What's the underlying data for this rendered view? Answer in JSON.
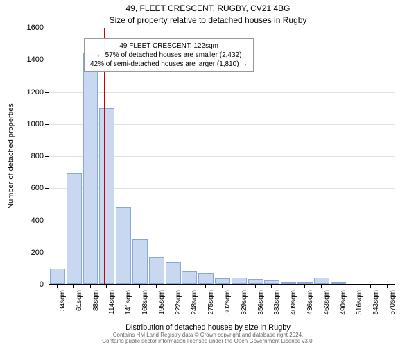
{
  "chart": {
    "type": "histogram",
    "title_main": "49, FLEET CRESCENT, RUGBY, CV21 4BG",
    "title_sub": "Size of property relative to detached houses in Rugby",
    "ylabel": "Number of detached properties",
    "xlabel": "Distribution of detached houses by size in Rugby",
    "ylim": [
      0,
      1600
    ],
    "ytick_step": 200,
    "yticks": [
      0,
      200,
      400,
      600,
      800,
      1000,
      1200,
      1400,
      1600
    ],
    "xticks": [
      "34sqm",
      "61sqm",
      "88sqm",
      "114sqm",
      "141sqm",
      "168sqm",
      "195sqm",
      "222sqm",
      "248sqm",
      "275sqm",
      "302sqm",
      "329sqm",
      "356sqm",
      "383sqm",
      "409sqm",
      "436sqm",
      "463sqm",
      "490sqm",
      "516sqm",
      "543sqm",
      "570sqm"
    ],
    "bar_values": [
      95,
      690,
      1440,
      1095,
      480,
      275,
      165,
      135,
      80,
      65,
      35,
      40,
      30,
      20,
      8,
      5,
      40,
      5,
      0,
      0,
      0
    ],
    "bar_fill": "#c8d8f0",
    "bar_border": "#87a8d8",
    "background_color": "#ffffff",
    "grid_color": "#e0e0e0",
    "marker_position": 3.3,
    "marker_color": "#cc0000",
    "annotation": {
      "line1": "49 FLEET CRESCENT: 122sqm",
      "line2": "← 57% of detached houses are smaller (2,432)",
      "line3": "42% of semi-detached houses are larger (1,810) →"
    },
    "attribution": {
      "line1": "Contains HM Land Registry data © Crown copyright and database right 2024.",
      "line2": "Contains public sector information licensed under the Open Government Licence v3.0."
    },
    "title_fontsize": 12,
    "label_fontsize": 11,
    "tick_fontsize": 10
  }
}
